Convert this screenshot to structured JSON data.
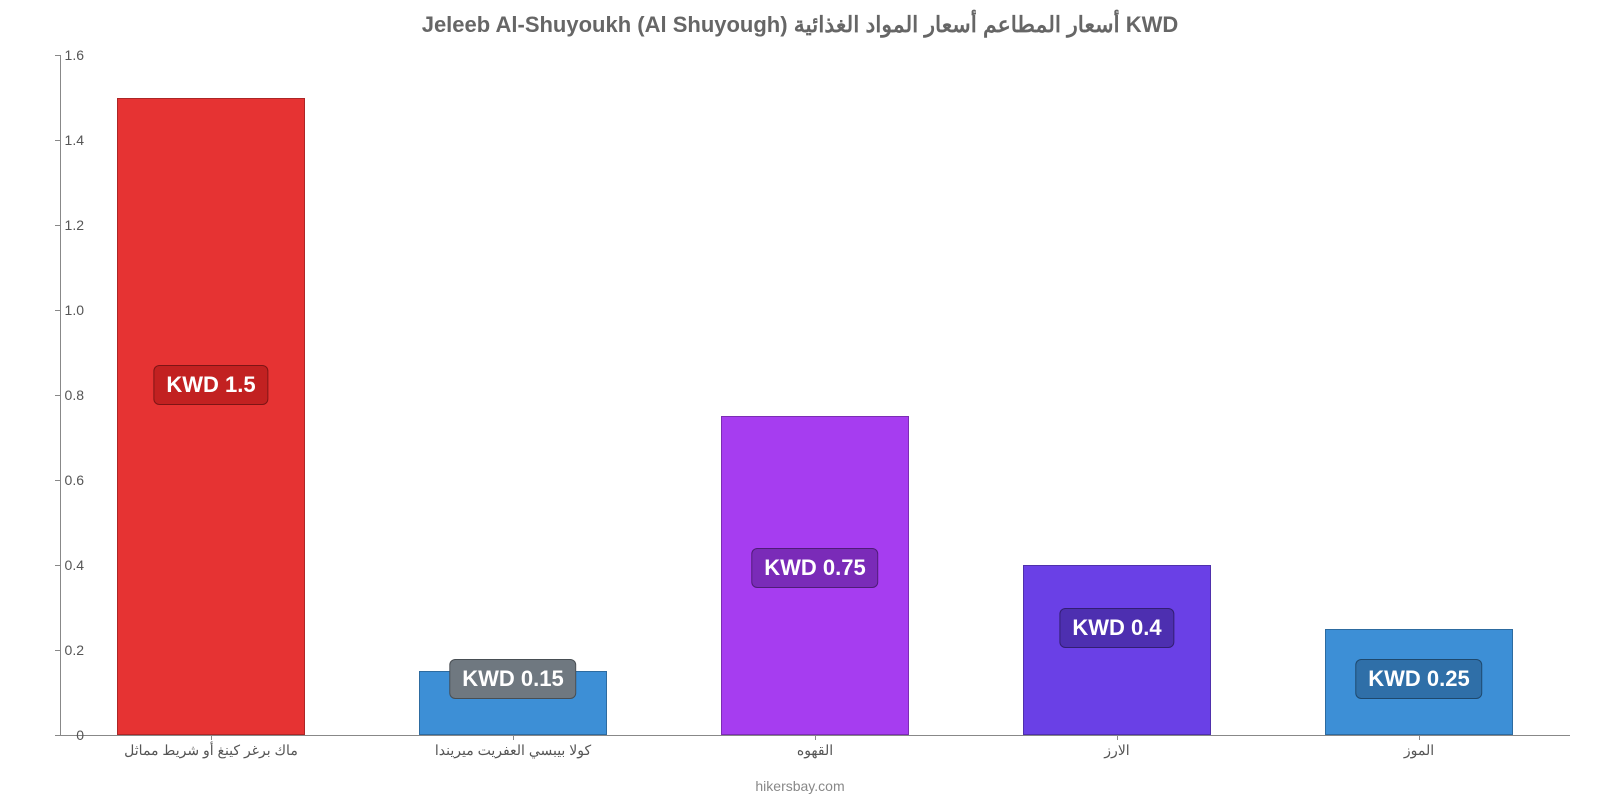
{
  "chart": {
    "type": "bar",
    "title": "Jeleeb Al-Shuyoukh (Al Shuyough) أسعار المطاعم أسعار المواد الغذائية KWD",
    "title_color": "#666666",
    "title_fontsize": 22,
    "background_color": "#ffffff",
    "axis_color": "#888888",
    "label_color": "#555555",
    "label_fontsize": 14,
    "ylim": [
      0,
      1.6
    ],
    "ytick_step": 0.2,
    "yticks": [
      "0",
      "0.2",
      "0.4",
      "0.6",
      "0.8",
      "1.0",
      "1.2",
      "1.4",
      "1.6"
    ],
    "currency_prefix": "KWD ",
    "bars": [
      {
        "category": "ماك برغر كينغ أو شريط مماثل",
        "value": 1.5,
        "display": "KWD 1.5",
        "bar_color": "#e63333",
        "badge_color": "#c22121",
        "badge_y_value": 0.87
      },
      {
        "category": "كولا بيبسي العفريت ميريندا",
        "value": 0.15,
        "display": "KWD 0.15",
        "bar_color": "#3d8fd6",
        "badge_color": "#6f7880",
        "badge_y_value": 0.18
      },
      {
        "category": "القهوه",
        "value": 0.75,
        "display": "KWD 0.75",
        "bar_color": "#a63df0",
        "badge_color": "#7a2bb8",
        "badge_y_value": 0.44
      },
      {
        "category": "الارز",
        "value": 0.4,
        "display": "KWD 0.4",
        "bar_color": "#6a40e6",
        "badge_color": "#4d2fb0",
        "badge_y_value": 0.3
      },
      {
        "category": "الموز",
        "value": 0.25,
        "display": "KWD 0.25",
        "bar_color": "#3d8fd6",
        "badge_color": "#2f6fa8",
        "badge_y_value": 0.18
      }
    ],
    "bar_width_ratio": 0.62,
    "badge_fontsize": 22,
    "attribution": "hikersbay.com"
  }
}
